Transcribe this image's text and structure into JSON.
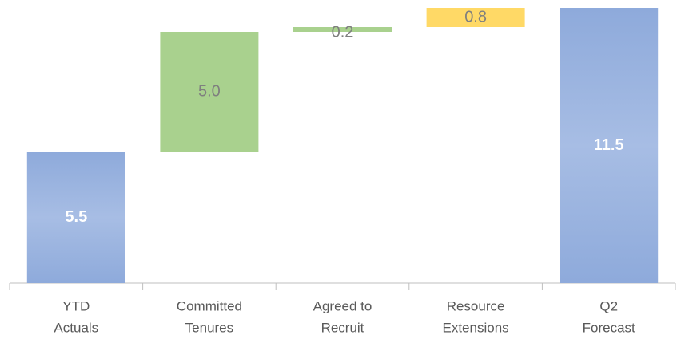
{
  "chart_data": {
    "type": "waterfall",
    "categories": [
      [
        "YTD",
        "Actuals"
      ],
      [
        "Committed",
        "Tenures"
      ],
      [
        "Agreed to",
        "Recruit"
      ],
      [
        "Resource",
        "Extensions"
      ],
      [
        "Q2",
        "Forecast"
      ]
    ],
    "values": [
      5.5,
      5.0,
      0.2,
      0.8,
      11.5
    ],
    "value_labels": [
      "5.5",
      "5.0",
      "0.2",
      "0.8",
      "11.5"
    ],
    "kinds": [
      "total",
      "increase",
      "increase",
      "increase",
      "total"
    ],
    "colors": [
      "#8eaadb",
      "#a9d18e",
      "#a9d18e",
      "#ffd966",
      "#8eaadb"
    ],
    "ylim": [
      0,
      11.5
    ]
  }
}
